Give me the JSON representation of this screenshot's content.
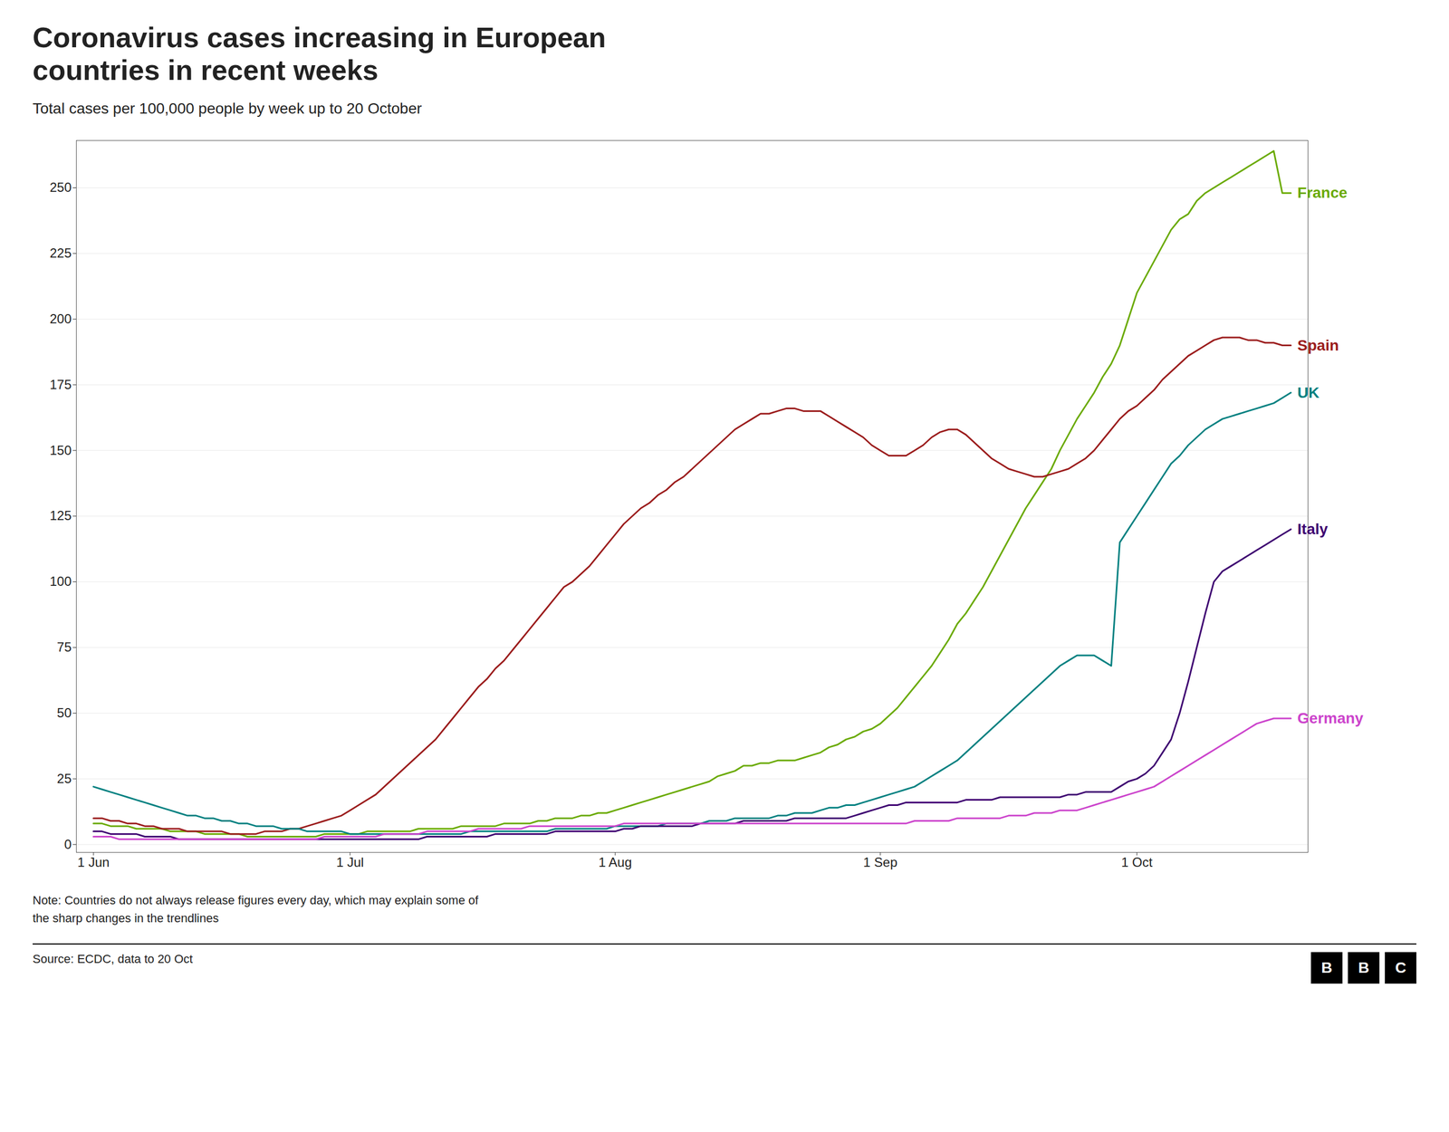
{
  "chart_data": {
    "type": "line",
    "title": "Coronavirus cases increasing in European\ncountries in recent weeks",
    "subtitle": "Total cases per 100,000 people by week up to 20 October",
    "note": "Note: Countries do not always release figures every day, which may explain some of\nthe sharp changes in the trendlines",
    "source": "Source: ECDC, data to 20 Oct",
    "logo": "BBC",
    "grid": true,
    "xlim": [
      -2,
      142
    ],
    "xticks": [
      {
        "value": 0,
        "label": "1 Jun"
      },
      {
        "value": 30,
        "label": "1 Jul"
      },
      {
        "value": 61,
        "label": "1 Aug"
      },
      {
        "value": 92,
        "label": "1 Sep"
      },
      {
        "value": 122,
        "label": "1 Oct"
      }
    ],
    "ylim": [
      -3,
      268
    ],
    "yticks": [
      0,
      25,
      50,
      75,
      100,
      125,
      150,
      175,
      200,
      225,
      250
    ],
    "x": [
      0,
      1,
      2,
      3,
      4,
      5,
      6,
      7,
      8,
      9,
      10,
      11,
      12,
      13,
      14,
      15,
      16,
      17,
      18,
      19,
      20,
      21,
      22,
      23,
      24,
      25,
      26,
      27,
      28,
      29,
      30,
      31,
      32,
      33,
      34,
      35,
      36,
      37,
      38,
      39,
      40,
      41,
      42,
      43,
      44,
      45,
      46,
      47,
      48,
      49,
      50,
      51,
      52,
      53,
      54,
      55,
      56,
      57,
      58,
      59,
      60,
      61,
      62,
      63,
      64,
      65,
      66,
      67,
      68,
      69,
      70,
      71,
      72,
      73,
      74,
      75,
      76,
      77,
      78,
      79,
      80,
      81,
      82,
      83,
      84,
      85,
      86,
      87,
      88,
      89,
      90,
      91,
      92,
      93,
      94,
      95,
      96,
      97,
      98,
      99,
      100,
      101,
      102,
      103,
      104,
      105,
      106,
      107,
      108,
      109,
      110,
      111,
      112,
      113,
      114,
      115,
      116,
      117,
      118,
      119,
      120,
      121,
      122,
      123,
      124,
      125,
      126,
      127,
      128,
      129,
      130,
      131,
      132,
      133,
      134,
      135,
      136,
      137,
      138,
      139,
      140
    ],
    "series": [
      {
        "name": "France",
        "color": "#6aaa00",
        "values": [
          8,
          8,
          7,
          7,
          7,
          6,
          6,
          6,
          6,
          5,
          5,
          5,
          5,
          4,
          4,
          4,
          4,
          4,
          3,
          3,
          3,
          3,
          3,
          3,
          3,
          3,
          3,
          4,
          4,
          4,
          4,
          4,
          5,
          5,
          5,
          5,
          5,
          5,
          6,
          6,
          6,
          6,
          6,
          7,
          7,
          7,
          7,
          7,
          8,
          8,
          8,
          8,
          9,
          9,
          10,
          10,
          10,
          11,
          11,
          12,
          12,
          13,
          14,
          15,
          16,
          17,
          18,
          19,
          20,
          21,
          22,
          23,
          24,
          26,
          27,
          28,
          30,
          30,
          31,
          31,
          32,
          32,
          32,
          33,
          34,
          35,
          37,
          38,
          40,
          41,
          43,
          44,
          46,
          49,
          52,
          56,
          60,
          64,
          68,
          73,
          78,
          84,
          88,
          93,
          98,
          104,
          110,
          116,
          122,
          128,
          133,
          138,
          143,
          150,
          156,
          162,
          167,
          172,
          178,
          183,
          190,
          200,
          210,
          216,
          222,
          228,
          234,
          238,
          240,
          245,
          248,
          250,
          252,
          254,
          256,
          258,
          260,
          262,
          264,
          248,
          248
        ]
      },
      {
        "name": "Spain",
        "color": "#9b1c1c",
        "values": [
          10,
          10,
          9,
          9,
          8,
          8,
          7,
          7,
          6,
          6,
          6,
          5,
          5,
          5,
          5,
          5,
          4,
          4,
          4,
          4,
          5,
          5,
          5,
          6,
          6,
          7,
          8,
          9,
          10,
          11,
          13,
          15,
          17,
          19,
          22,
          25,
          28,
          31,
          34,
          37,
          40,
          44,
          48,
          52,
          56,
          60,
          63,
          67,
          70,
          74,
          78,
          82,
          86,
          90,
          94,
          98,
          100,
          103,
          106,
          110,
          114,
          118,
          122,
          125,
          128,
          130,
          133,
          135,
          138,
          140,
          143,
          146,
          149,
          152,
          155,
          158,
          160,
          162,
          164,
          164,
          165,
          166,
          166,
          165,
          165,
          165,
          163,
          161,
          159,
          157,
          155,
          152,
          150,
          148,
          148,
          148,
          150,
          152,
          155,
          157,
          158,
          158,
          156,
          153,
          150,
          147,
          145,
          143,
          142,
          141,
          140,
          140,
          141,
          142,
          143,
          145,
          147,
          150,
          154,
          158,
          162,
          165,
          167,
          170,
          173,
          177,
          180,
          183,
          186,
          188,
          190,
          192,
          193,
          193,
          193,
          192,
          192,
          191,
          191,
          190,
          190
        ]
      },
      {
        "name": "UK",
        "color": "#008080",
        "values": [
          22,
          21,
          20,
          19,
          18,
          17,
          16,
          15,
          14,
          13,
          12,
          11,
          11,
          10,
          10,
          9,
          9,
          8,
          8,
          7,
          7,
          7,
          6,
          6,
          6,
          5,
          5,
          5,
          5,
          5,
          4,
          4,
          4,
          4,
          4,
          4,
          4,
          4,
          4,
          4,
          4,
          4,
          4,
          4,
          5,
          5,
          5,
          5,
          5,
          5,
          5,
          5,
          5,
          5,
          6,
          6,
          6,
          6,
          6,
          6,
          6,
          7,
          7,
          7,
          7,
          7,
          7,
          8,
          8,
          8,
          8,
          8,
          9,
          9,
          9,
          10,
          10,
          10,
          10,
          10,
          11,
          11,
          12,
          12,
          12,
          13,
          14,
          14,
          15,
          15,
          16,
          17,
          18,
          19,
          20,
          21,
          22,
          24,
          26,
          28,
          30,
          32,
          35,
          38,
          41,
          44,
          47,
          50,
          53,
          56,
          59,
          62,
          65,
          68,
          70,
          72,
          72,
          72,
          70,
          68,
          115,
          120,
          125,
          130,
          135,
          140,
          145,
          148,
          152,
          155,
          158,
          160,
          162,
          163,
          164,
          165,
          166,
          167,
          168,
          170,
          172
        ]
      },
      {
        "name": "Italy",
        "color": "#3d0070",
        "values": [
          5,
          5,
          4,
          4,
          4,
          4,
          3,
          3,
          3,
          3,
          2,
          2,
          2,
          2,
          2,
          2,
          2,
          2,
          2,
          2,
          2,
          2,
          2,
          2,
          2,
          2,
          2,
          2,
          2,
          2,
          2,
          2,
          2,
          2,
          2,
          2,
          2,
          2,
          2,
          3,
          3,
          3,
          3,
          3,
          3,
          3,
          3,
          4,
          4,
          4,
          4,
          4,
          4,
          4,
          5,
          5,
          5,
          5,
          5,
          5,
          5,
          5,
          6,
          6,
          7,
          7,
          7,
          7,
          7,
          7,
          7,
          8,
          8,
          8,
          8,
          8,
          9,
          9,
          9,
          9,
          9,
          9,
          10,
          10,
          10,
          10,
          10,
          10,
          10,
          11,
          12,
          13,
          14,
          15,
          15,
          16,
          16,
          16,
          16,
          16,
          16,
          16,
          17,
          17,
          17,
          17,
          18,
          18,
          18,
          18,
          18,
          18,
          18,
          18,
          19,
          19,
          20,
          20,
          20,
          20,
          22,
          24,
          25,
          27,
          30,
          35,
          40,
          50,
          62,
          75,
          88,
          100,
          104,
          106,
          108,
          110,
          112,
          114,
          116,
          118,
          120
        ]
      },
      {
        "name": "Germany",
        "color": "#cc44cc",
        "values": [
          3,
          3,
          3,
          2,
          2,
          2,
          2,
          2,
          2,
          2,
          2,
          2,
          2,
          2,
          2,
          2,
          2,
          2,
          2,
          2,
          2,
          2,
          2,
          2,
          2,
          2,
          2,
          3,
          3,
          3,
          3,
          3,
          3,
          3,
          4,
          4,
          4,
          4,
          4,
          5,
          5,
          5,
          5,
          5,
          5,
          6,
          6,
          6,
          6,
          6,
          6,
          7,
          7,
          7,
          7,
          7,
          7,
          7,
          7,
          7,
          7,
          7,
          8,
          8,
          8,
          8,
          8,
          8,
          8,
          8,
          8,
          8,
          8,
          8,
          8,
          8,
          8,
          8,
          8,
          8,
          8,
          8,
          8,
          8,
          8,
          8,
          8,
          8,
          8,
          8,
          8,
          8,
          8,
          8,
          8,
          8,
          9,
          9,
          9,
          9,
          9,
          10,
          10,
          10,
          10,
          10,
          10,
          11,
          11,
          11,
          12,
          12,
          12,
          13,
          13,
          13,
          14,
          15,
          16,
          17,
          18,
          19,
          20,
          21,
          22,
          24,
          26,
          28,
          30,
          32,
          34,
          36,
          38,
          40,
          42,
          44,
          46,
          47,
          48,
          48,
          48
        ]
      }
    ]
  }
}
